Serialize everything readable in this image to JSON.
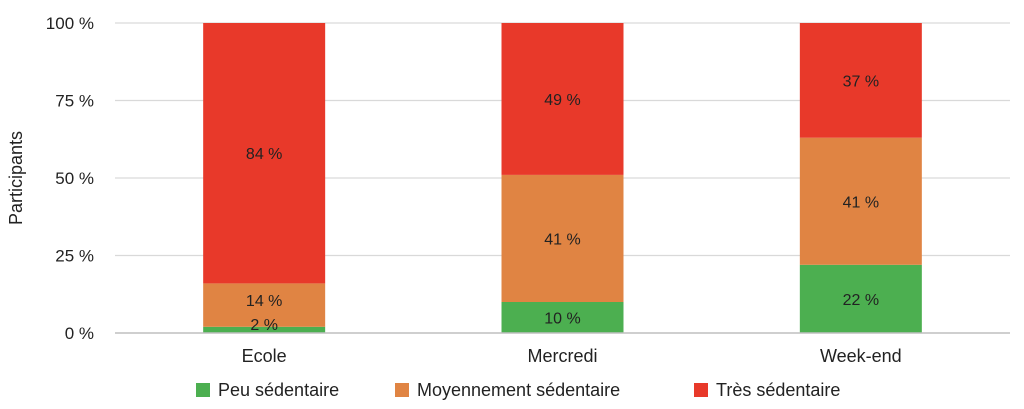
{
  "chart_data": {
    "type": "bar",
    "stacked": true,
    "ylabel": "Participants",
    "ylim": [
      0,
      100
    ],
    "yticks": [
      "0 %",
      "25 %",
      "50 %",
      "75 %",
      "100 %"
    ],
    "ytick_values": [
      0,
      25,
      50,
      75,
      100
    ],
    "categories": [
      "Ecole",
      "Mercredi",
      "Week-end"
    ],
    "series": [
      {
        "name": "Peu sédentaire",
        "color": "#4caf50",
        "values": [
          2,
          10,
          22
        ],
        "labels": [
          "2 %",
          "10 %",
          "22 %"
        ]
      },
      {
        "name": "Moyennement sédentaire",
        "color": "#e08443",
        "values": [
          14,
          41,
          41
        ],
        "labels": [
          "14 %",
          "41 %",
          "41 %"
        ]
      },
      {
        "name": "Très sédentaire",
        "color": "#e8392a",
        "values": [
          84,
          49,
          37
        ],
        "labels": [
          "84 %",
          "49 %",
          "37 %"
        ]
      }
    ],
    "legend_position": "bottom",
    "grid": true
  }
}
